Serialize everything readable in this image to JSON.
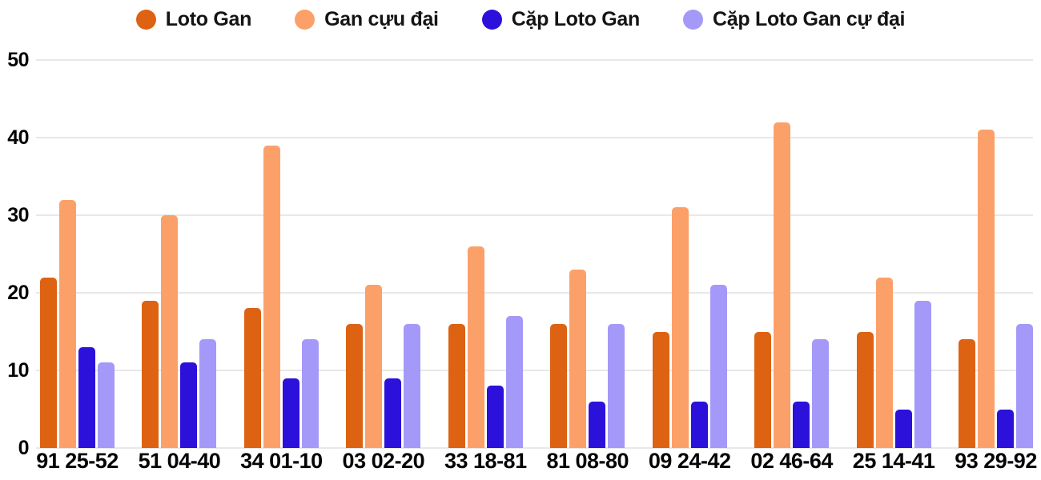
{
  "chart_data": {
    "type": "bar",
    "title": "",
    "xlabel": "",
    "ylabel": "",
    "categories": [
      "91 25-52",
      "51 04-40",
      "34 01-10",
      "03 02-20",
      "33 18-81",
      "81 08-80",
      "09 24-42",
      "02 46-64",
      "25 14-41",
      "93 29-92"
    ],
    "series": [
      {
        "name": "Loto Gan",
        "color": "#dd6212",
        "values": [
          22,
          19,
          18,
          16,
          16,
          16,
          15,
          15,
          15,
          14
        ]
      },
      {
        "name": "Gan cựu đại",
        "color": "#fca069",
        "values": [
          32,
          30,
          39,
          21,
          26,
          23,
          31,
          42,
          22,
          41
        ]
      },
      {
        "name": "Cặp Loto Gan",
        "color": "#2c11db",
        "values": [
          13,
          11,
          9,
          9,
          8,
          6,
          6,
          6,
          5,
          5
        ]
      },
      {
        "name": "Cặp Loto Gan cự đại",
        "color": "#a499f8",
        "values": [
          11,
          14,
          14,
          16,
          17,
          16,
          21,
          14,
          19,
          16
        ]
      }
    ],
    "ylim": [
      0,
      50
    ],
    "yticks": [
      0,
      10,
      20,
      30,
      40,
      50
    ],
    "grid": true,
    "legend_position": "top",
    "background_color": "#ffffff",
    "gridline_color": "#e8e8e8",
    "axis_text_color": "#050505"
  }
}
